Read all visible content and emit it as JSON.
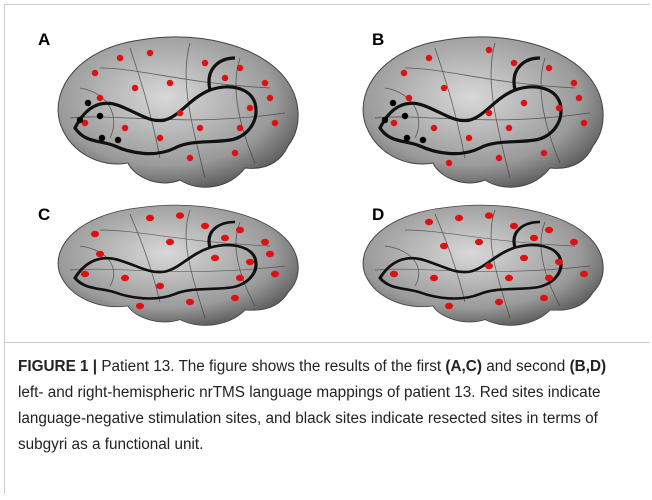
{
  "panels": [
    "A",
    "B",
    "C",
    "D"
  ],
  "caption": {
    "label": "FIGURE 1 |",
    "parts": [
      {
        "text": " Patient 13. The figure shows the results of the first ",
        "bold": false
      },
      {
        "text": "(A,C)",
        "bold": true
      },
      {
        "text": " and second ",
        "bold": false
      },
      {
        "text": "(B,D)",
        "bold": true
      },
      {
        "text": " left- and right-hemispheric nrTMS language mappings of patient 13. Red sites indicate language-negative stimulation sites, and black sites indicate resected sites in terms of subgyri as a functional unit.",
        "bold": false
      }
    ]
  }
}
